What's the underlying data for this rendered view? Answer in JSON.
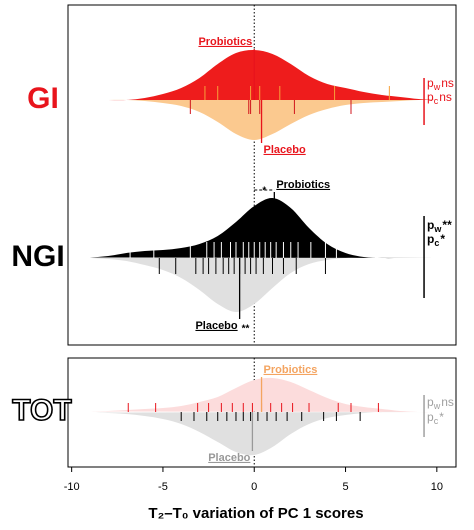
{
  "chart_data": {
    "type": "beanplot",
    "xlabel": "T₂–T₀ variation of PC 1 scores",
    "xlim": [
      -10.2,
      11.05
    ],
    "xticks": [
      -10,
      -5,
      0,
      5,
      10
    ],
    "reference_line": 0,
    "density_x": [
      -9,
      -8,
      -7,
      -6,
      -5,
      -4,
      -3,
      -2,
      -1,
      0,
      1,
      2,
      3,
      4,
      5,
      6,
      7,
      8,
      9,
      10
    ],
    "panels": [
      {
        "groups": [
          {
            "label": "GI",
            "color": "#e8141c",
            "stats": [
              {
                "symbol": "p",
                "subscript": "w",
                "mark": "ns"
              },
              {
                "symbol": "p",
                "subscript": "c",
                "mark": "ns"
              }
            ],
            "series": [
              {
                "name": "Probiotics",
                "color": "#ee1c1c",
                "rug_color": "#f7a13a",
                "label_color": "#e8141c",
                "median": 0,
                "density": [
                  0,
                  0,
                  0,
                  0.02,
                  0.06,
                  0.12,
                  0.22,
                  0.36,
                  0.47,
                  0.5,
                  0.46,
                  0.36,
                  0.24,
                  0.16,
                  0.12,
                  0.08,
                  0.05,
                  0.03,
                  0.01,
                  0
                ],
                "rug": [
                  -2.7,
                  -2,
                  -0.2,
                  0.3,
                  1.4,
                  4.4,
                  7.4
                ]
              },
              {
                "name": "Placebo",
                "color": "#fbc98f",
                "rug_color": "#d0141c",
                "label_color": "#e8141c",
                "median": 0.4,
                "density": [
                  0,
                  0,
                  0,
                  0.01,
                  0.03,
                  0.06,
                  0.12,
                  0.22,
                  0.34,
                  0.4,
                  0.34,
                  0.24,
                  0.15,
                  0.09,
                  0.05,
                  0.03,
                  0.02,
                  0.01,
                  0,
                  0
                ],
                "rug": [
                  -3.5,
                  -0.3,
                  -0.2,
                  0.3,
                  2.2,
                  5.3
                ]
              }
            ]
          },
          {
            "label": "NGI",
            "color": "#000000",
            "median_sig": "*",
            "placebo_sig": "**",
            "stats": [
              {
                "symbol": "p",
                "subscript": "w",
                "mark": "**"
              },
              {
                "symbol": "p",
                "subscript": "c",
                "mark": "*"
              }
            ],
            "series": [
              {
                "name": "Probiotics",
                "color": "#000000",
                "rug_color": "#ffffff",
                "label_color": "#000000",
                "median": 1.1,
                "density": [
                  0.005,
                  0.02,
                  0.05,
                  0.07,
                  0.08,
                  0.1,
                  0.14,
                  0.22,
                  0.36,
                  0.52,
                  0.6,
                  0.5,
                  0.3,
                  0.14,
                  0.05,
                  0.01,
                  0,
                  0,
                  0,
                  0
                ],
                "rug": [
                  -6.8,
                  -5.5,
                  -3.5,
                  -2.6,
                  -2.2,
                  -1.8,
                  -1.3,
                  -1,
                  -0.6,
                  -0.3,
                  0,
                  0.3,
                  0.6,
                  0.9,
                  1.2,
                  1.6,
                  2,
                  2.4,
                  3.1,
                  3.9,
                  4.5
                ]
              },
              {
                "name": "Placebo",
                "color": "#e0e0e0",
                "rug_color": "#000000",
                "label_color": "#000000",
                "median": -0.8,
                "density": [
                  0,
                  0.01,
                  0.03,
                  0.07,
                  0.12,
                  0.2,
                  0.32,
                  0.46,
                  0.54,
                  0.46,
                  0.3,
                  0.15,
                  0.06,
                  0.02,
                  0,
                  0,
                  0,
                  0,
                  0,
                  0
                ],
                "rug": [
                  -5.2,
                  -4.3,
                  -3.2,
                  -2.8,
                  -2.5,
                  -2.1,
                  -1.7,
                  -1.4,
                  -1.1,
                  -0.8,
                  -0.5,
                  -0.2,
                  0.1,
                  0.5,
                  1,
                  1.6,
                  2.3,
                  3.9
                ]
              }
            ]
          }
        ]
      },
      {
        "groups": [
          {
            "label": "TOT",
            "color": "#a0a0a0",
            "stats": [
              {
                "symbol": "p",
                "subscript": "w",
                "mark": "ns"
              },
              {
                "symbol": "p",
                "subscript": "c",
                "mark": "*"
              }
            ],
            "series": [
              {
                "name": "Probiotics",
                "color": "#fcdcdc",
                "rug_color": "#e8141c",
                "label_color": "#f4a460",
                "median": 0.4,
                "density": [
                  0.005,
                  0.01,
                  0.02,
                  0.03,
                  0.04,
                  0.06,
                  0.1,
                  0.15,
                  0.24,
                  0.32,
                  0.34,
                  0.3,
                  0.22,
                  0.14,
                  0.08,
                  0.05,
                  0.03,
                  0.01,
                  0,
                  0
                ],
                "rug": [
                  -6.9,
                  -5.4,
                  -3.1,
                  -2.5,
                  -1.8,
                  -1.2,
                  -0.6,
                  -0.1,
                  0.4,
                  0.9,
                  1.5,
                  2.1,
                  3,
                  4.6,
                  5.3,
                  6.8
                ]
              },
              {
                "name": "Placebo",
                "color": "#e0e0e0",
                "rug_color": "#000000",
                "label_color": "#999999",
                "median": -0.1,
                "density": [
                  0.005,
                  0.01,
                  0.02,
                  0.04,
                  0.07,
                  0.12,
                  0.2,
                  0.3,
                  0.4,
                  0.43,
                  0.35,
                  0.22,
                  0.12,
                  0.06,
                  0.03,
                  0.01,
                  0,
                  0,
                  0,
                  0
                ],
                "rug": [
                  -4,
                  -3.3,
                  -2.6,
                  -2,
                  -1.5,
                  -1,
                  -0.6,
                  -0.2,
                  0.2,
                  0.7,
                  1.2,
                  1.8,
                  2.6,
                  3.8,
                  4.5,
                  5.8
                ]
              }
            ]
          }
        ]
      }
    ]
  }
}
